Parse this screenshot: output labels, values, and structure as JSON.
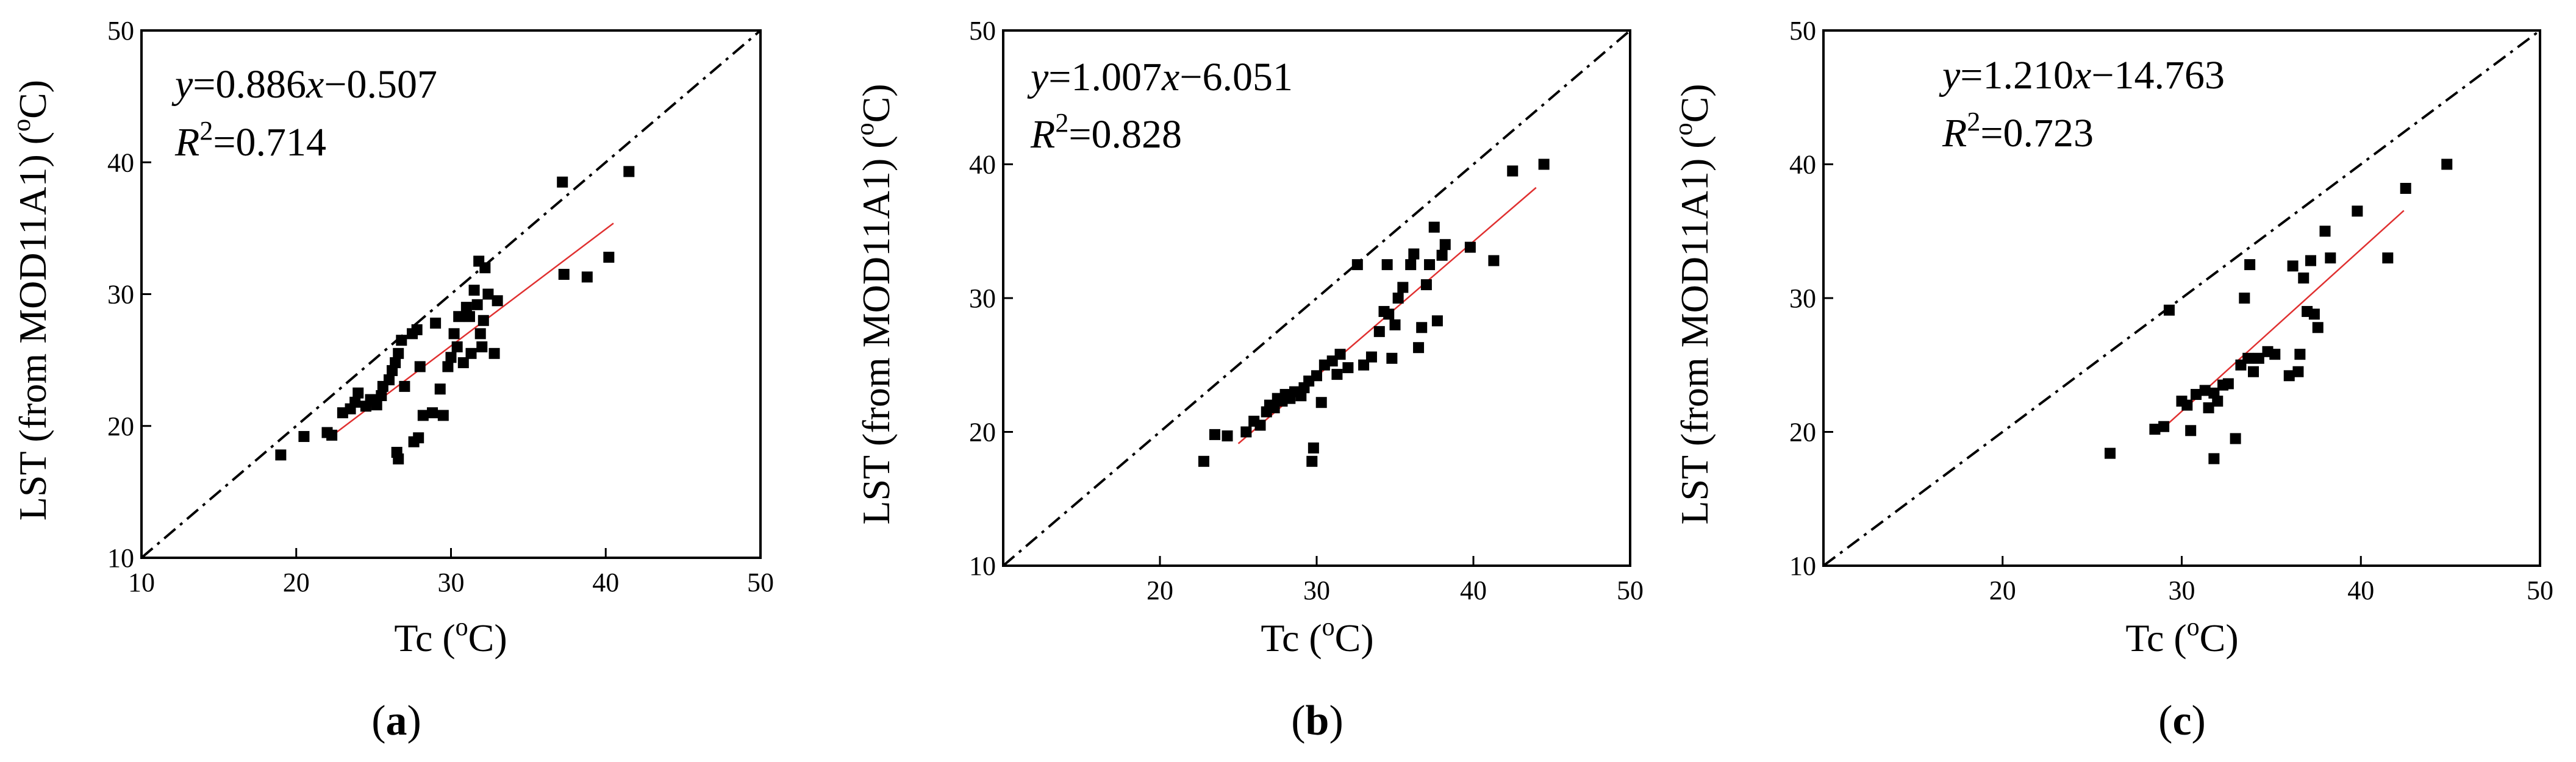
{
  "chart_data": [
    {
      "type": "scatter",
      "panel_label_open": "(",
      "panel_label": "a",
      "panel_label_close": ")",
      "xlabel": {
        "pre": "Tc (",
        "sup": "o",
        "post": "C)"
      },
      "ylabel": {
        "pre": "LST (from MOD11A1) (",
        "sup": "o",
        "post": "C)"
      },
      "xlim": [
        10,
        50
      ],
      "ylim": [
        10,
        50
      ],
      "xticks": [
        "10",
        "20",
        "30",
        "40",
        "50"
      ],
      "yticks": [
        "10",
        "20",
        "30",
        "40",
        "50"
      ],
      "equation": {
        "y": "y",
        "mid": "=0.886",
        "x": "x",
        "tail": "−0.507"
      },
      "r2": {
        "r": "R",
        "sup": "2",
        "value": "=0.714"
      },
      "fit": {
        "slope": 0.886,
        "intercept": -0.507,
        "x_range": [
          22.5,
          40.5
        ]
      },
      "identity_line": true,
      "fit_color": "#e03030",
      "marker_color": "#000000",
      "points": [
        [
          19.0,
          17.8
        ],
        [
          20.5,
          19.2
        ],
        [
          22.0,
          19.5
        ],
        [
          22.3,
          19.3
        ],
        [
          23.0,
          21.0
        ],
        [
          23.5,
          21.3
        ],
        [
          23.8,
          21.8
        ],
        [
          24.0,
          22.5
        ],
        [
          24.5,
          21.5
        ],
        [
          24.8,
          22.0
        ],
        [
          25.2,
          21.6
        ],
        [
          25.5,
          22.3
        ],
        [
          25.6,
          23.0
        ],
        [
          26.0,
          23.5
        ],
        [
          26.2,
          24.2
        ],
        [
          26.4,
          24.8
        ],
        [
          26.6,
          25.5
        ],
        [
          26.8,
          26.5
        ],
        [
          26.5,
          18.0
        ],
        [
          26.6,
          17.5
        ],
        [
          27.0,
          23.0
        ],
        [
          27.5,
          27.0
        ],
        [
          27.8,
          27.3
        ],
        [
          27.6,
          18.8
        ],
        [
          27.9,
          19.1
        ],
        [
          28.0,
          24.5
        ],
        [
          28.2,
          20.8
        ],
        [
          28.8,
          21.0
        ],
        [
          29.0,
          27.8
        ],
        [
          29.3,
          22.8
        ],
        [
          29.5,
          20.8
        ],
        [
          29.8,
          24.5
        ],
        [
          30.0,
          25.2
        ],
        [
          30.2,
          27.0
        ],
        [
          30.4,
          26.0
        ],
        [
          30.5,
          28.3
        ],
        [
          30.8,
          24.8
        ],
        [
          31.0,
          29.0
        ],
        [
          31.2,
          28.3
        ],
        [
          31.3,
          25.5
        ],
        [
          31.5,
          30.3
        ],
        [
          31.7,
          29.2
        ],
        [
          31.8,
          32.5
        ],
        [
          31.9,
          27.0
        ],
        [
          32.0,
          26.0
        ],
        [
          32.1,
          28.0
        ],
        [
          32.2,
          32.0
        ],
        [
          32.4,
          30.0
        ],
        [
          32.8,
          25.5
        ],
        [
          33.0,
          29.5
        ],
        [
          37.2,
          38.5
        ],
        [
          37.3,
          31.5
        ],
        [
          38.8,
          31.3
        ],
        [
          40.2,
          32.8
        ],
        [
          41.5,
          39.3
        ]
      ]
    },
    {
      "type": "scatter",
      "panel_label_open": "(",
      "panel_label": "b",
      "panel_label_close": ")",
      "xlabel": {
        "pre": "Tc (",
        "sup": "o",
        "post": "C)"
      },
      "ylabel": {
        "pre": "LST (from MOD11A1) (",
        "sup": "o",
        "post": "C)"
      },
      "xlim": [
        10,
        50
      ],
      "ylim": [
        10,
        50
      ],
      "xticks": [
        "",
        "20",
        "30",
        "40",
        "50"
      ],
      "yticks": [
        "10",
        "20",
        "30",
        "40",
        "50"
      ],
      "equation": {
        "y": "y",
        "mid": "=1.007",
        "x": "x",
        "tail": "−6.051"
      },
      "r2": {
        "r": "R",
        "sup": "2",
        "value": "=0.828"
      },
      "fit": {
        "slope": 1.007,
        "intercept": -6.051,
        "x_range": [
          25.0,
          44.0
        ]
      },
      "identity_line": true,
      "fit_color": "#e03030",
      "marker_color": "#000000",
      "points": [
        [
          22.8,
          17.8
        ],
        [
          23.5,
          19.8
        ],
        [
          24.3,
          19.7
        ],
        [
          25.5,
          20.0
        ],
        [
          26.0,
          20.8
        ],
        [
          26.4,
          20.5
        ],
        [
          26.8,
          21.5
        ],
        [
          27.0,
          22.0
        ],
        [
          27.3,
          21.8
        ],
        [
          27.5,
          22.5
        ],
        [
          27.8,
          22.3
        ],
        [
          28.0,
          22.8
        ],
        [
          28.3,
          22.5
        ],
        [
          28.6,
          23.0
        ],
        [
          29.0,
          22.7
        ],
        [
          29.2,
          23.3
        ],
        [
          29.5,
          23.8
        ],
        [
          29.7,
          17.8
        ],
        [
          29.8,
          18.8
        ],
        [
          30.0,
          24.2
        ],
        [
          30.3,
          22.2
        ],
        [
          30.5,
          25.0
        ],
        [
          31.0,
          25.3
        ],
        [
          31.3,
          24.3
        ],
        [
          31.5,
          25.8
        ],
        [
          32.0,
          24.8
        ],
        [
          32.6,
          32.5
        ],
        [
          33.0,
          25.0
        ],
        [
          33.5,
          25.6
        ],
        [
          34.0,
          27.5
        ],
        [
          34.3,
          29.0
        ],
        [
          34.5,
          32.5
        ],
        [
          34.6,
          28.8
        ],
        [
          34.8,
          25.5
        ],
        [
          35.0,
          28.0
        ],
        [
          35.2,
          30.0
        ],
        [
          35.5,
          30.8
        ],
        [
          36.0,
          32.5
        ],
        [
          36.2,
          33.3
        ],
        [
          36.5,
          26.3
        ],
        [
          36.7,
          27.8
        ],
        [
          37.0,
          31.0
        ],
        [
          37.2,
          32.5
        ],
        [
          37.5,
          35.3
        ],
        [
          37.7,
          28.3
        ],
        [
          38.0,
          33.2
        ],
        [
          38.2,
          34.0
        ],
        [
          39.8,
          33.8
        ],
        [
          41.3,
          32.8
        ],
        [
          42.5,
          39.5
        ],
        [
          44.5,
          40.0
        ]
      ]
    },
    {
      "type": "scatter",
      "panel_label_open": "(",
      "panel_label": "c",
      "panel_label_close": ")",
      "xlabel": {
        "pre": "Tc (",
        "sup": "o",
        "post": "C)"
      },
      "ylabel": {
        "pre": "LST (from MOD11A1) (",
        "sup": "o",
        "post": "C)"
      },
      "xlim": [
        10,
        50
      ],
      "ylim": [
        10,
        50
      ],
      "xticks": [
        "",
        "20",
        "30",
        "40",
        "50"
      ],
      "yticks": [
        "10",
        "20",
        "30",
        "40",
        "50"
      ],
      "equation": {
        "y": "y",
        "mid": "=1.210",
        "x": "x",
        "tail": "−14.763"
      },
      "r2": {
        "r": "R",
        "sup": "2",
        "value": "=0.723"
      },
      "fit": {
        "slope": 1.21,
        "intercept": -14.763,
        "x_range": [
          28.6,
          42.4
        ]
      },
      "identity_line": true,
      "fit_color": "#e03030",
      "marker_color": "#000000",
      "points": [
        [
          26.0,
          18.4
        ],
        [
          28.5,
          20.2
        ],
        [
          29.0,
          20.4
        ],
        [
          29.3,
          29.1
        ],
        [
          30.0,
          22.3
        ],
        [
          30.3,
          22.0
        ],
        [
          30.5,
          20.1
        ],
        [
          30.8,
          22.8
        ],
        [
          31.3,
          23.1
        ],
        [
          31.5,
          21.8
        ],
        [
          31.8,
          22.9
        ],
        [
          31.8,
          18.0
        ],
        [
          32.0,
          22.3
        ],
        [
          32.3,
          23.5
        ],
        [
          32.6,
          23.6
        ],
        [
          33.0,
          19.5
        ],
        [
          33.3,
          25.0
        ],
        [
          33.5,
          30.0
        ],
        [
          33.7,
          25.5
        ],
        [
          33.8,
          32.5
        ],
        [
          34.0,
          24.5
        ],
        [
          34.3,
          25.5
        ],
        [
          34.8,
          26.0
        ],
        [
          35.2,
          25.8
        ],
        [
          36.0,
          24.2
        ],
        [
          36.2,
          32.4
        ],
        [
          36.5,
          24.5
        ],
        [
          36.6,
          25.8
        ],
        [
          36.8,
          31.5
        ],
        [
          37.0,
          29.0
        ],
        [
          37.2,
          32.8
        ],
        [
          37.4,
          28.8
        ],
        [
          37.6,
          27.8
        ],
        [
          38.0,
          35.0
        ],
        [
          38.3,
          33.0
        ],
        [
          39.8,
          36.5
        ],
        [
          41.5,
          33.0
        ],
        [
          42.5,
          38.2
        ],
        [
          44.8,
          40.0
        ]
      ]
    }
  ]
}
